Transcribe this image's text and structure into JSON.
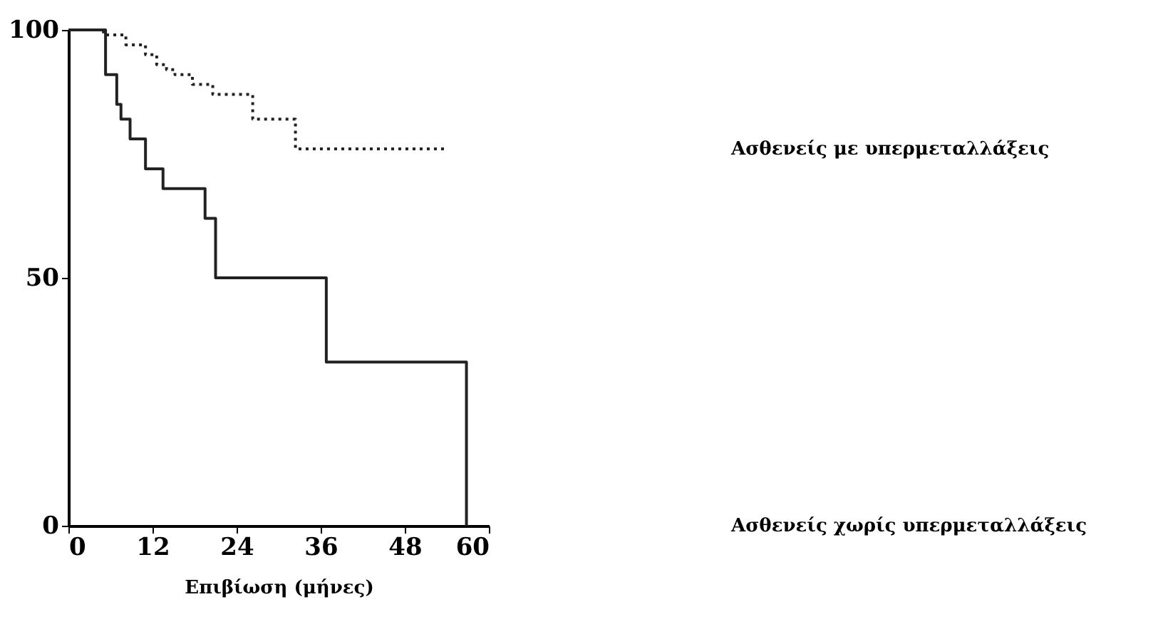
{
  "chart_data": {
    "type": "step",
    "xlabel": "Επιβίωση (μήνες)",
    "xlim": [
      0,
      60
    ],
    "xticks": [
      0,
      12,
      24,
      36,
      48,
      60
    ],
    "ylim": [
      0,
      100
    ],
    "yticks": [
      0,
      50,
      100
    ],
    "grid": false,
    "legend": false,
    "series": [
      {
        "name": "Ασθενείς με υπερμεταλλάξεις",
        "color": "#222222",
        "line_style": "dotted",
        "x": [
          0,
          5,
          8.2,
          11,
          12.6,
          14,
          15.2,
          17.7,
          20.6,
          26.3,
          32.4,
          53.9
        ],
        "values": [
          100,
          99,
          97,
          95,
          93,
          92,
          91,
          89,
          87,
          82,
          76,
          76
        ]
      },
      {
        "name": "Ασθενείς χωρίς υπερμεταλλάξεις",
        "color": "#222222",
        "line_style": "solid",
        "x": [
          0,
          5.3,
          6.9,
          7.5,
          8.8,
          11,
          13.5,
          19.5,
          21,
          36.8,
          56.8
        ],
        "values": [
          100,
          91,
          85,
          82,
          78,
          72,
          68,
          62,
          50,
          33,
          0
        ]
      }
    ]
  }
}
